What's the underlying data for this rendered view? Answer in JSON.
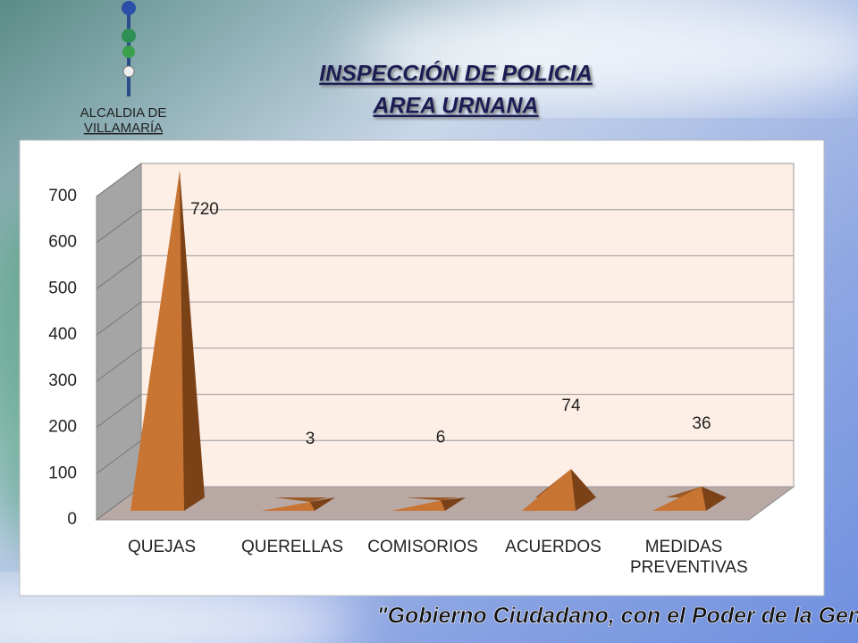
{
  "logo": {
    "line1": "ALCALDIA DE",
    "line2": "VILLAMARÍA"
  },
  "footer": "\"Gobierno Ciudadano, con el Poder de la Gente\"",
  "chart_data": {
    "type": "pyramid3d",
    "title": "INSPECCIÓN DE POLICIA",
    "subtitle": "AREA URNANA",
    "categories": [
      "QUEJAS",
      "QUERELLAS",
      "COMISORIOS",
      "ACUERDOS",
      "MEDIDAS PREVENTIVAS"
    ],
    "values": [
      720,
      3,
      6,
      74,
      36
    ],
    "color": "#c87533",
    "ylim": [
      0,
      700
    ],
    "yticks": [
      0,
      100,
      200,
      300,
      400,
      500,
      600,
      700
    ],
    "grid": true
  }
}
